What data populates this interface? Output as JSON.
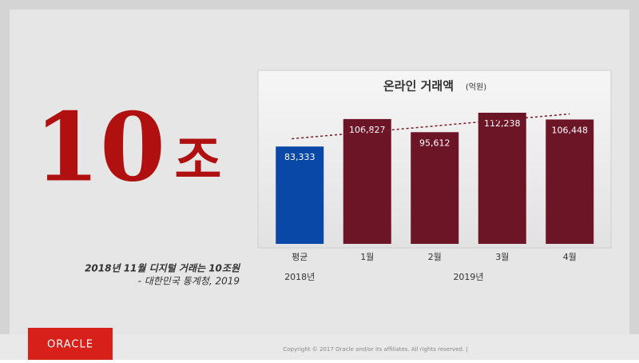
{
  "headline": {
    "number": "10",
    "unit": "조"
  },
  "caption": [
    "2018년 11월 디지털 거래는 10조원",
    "- 대한민국 통계청, 2019"
  ],
  "footer": {
    "logo": "ORACLE",
    "copyright": "Copyright © 2017 Oracle and/or its affiliates. All rights reserved.  |"
  },
  "chart_data": {
    "type": "bar",
    "title": "온라인 거래액",
    "subtitle": "(억원)",
    "categories": [
      "평균",
      "1월",
      "2월",
      "3월",
      "4월"
    ],
    "group_labels": [
      "2018년",
      "2019년"
    ],
    "values": [
      83333,
      106827,
      95612,
      112238,
      106448
    ],
    "value_labels": [
      "83,333",
      "106,827",
      "95,612",
      "112,238",
      "106,448"
    ],
    "colors": [
      "#0a48a8",
      "#6c1527",
      "#6c1527",
      "#6c1527",
      "#6c1527"
    ],
    "trendline": "linear",
    "trendline_color": "#7a1a2a"
  }
}
